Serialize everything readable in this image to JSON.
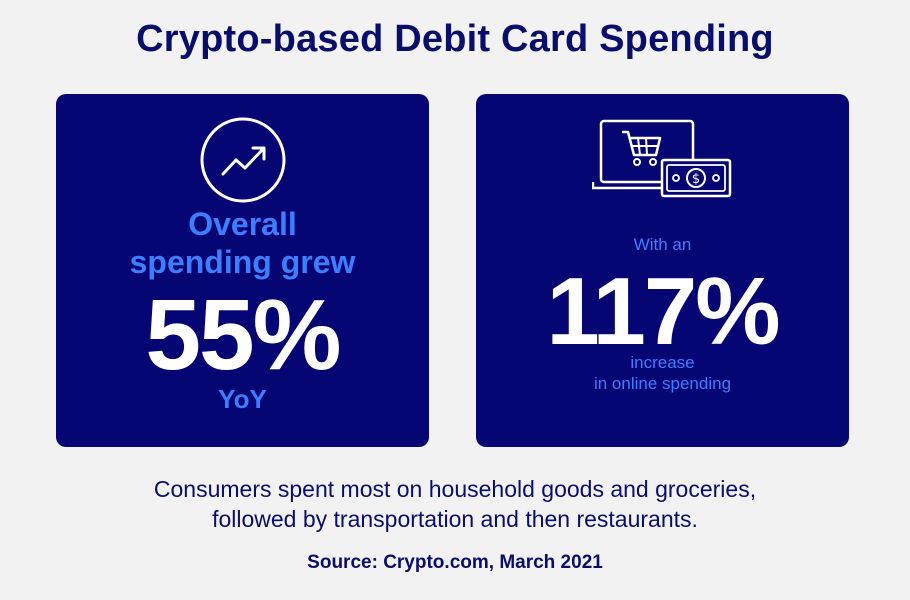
{
  "title": "Crypto-based Debit Card Spending",
  "left_card": {
    "icon": "trend-up-icon",
    "line1": "Overall",
    "line2": "spending grew",
    "stat": "55%",
    "suffix": "YoY"
  },
  "right_card": {
    "icon": "laptop-shopping-cart-cash-icon",
    "prefix": "With an",
    "stat": "117%",
    "suffix_line1": "increase",
    "suffix_line2": "in online spending"
  },
  "description": {
    "line1": "Consumers spent most on household goods and groceries,",
    "line2": "followed by transportation and then restaurants."
  },
  "source": "Source: Crypto.com, March 2021",
  "colors": {
    "navy_text": "#0a0e6b",
    "card_bg": "#050673",
    "accent_blue": "#3d7dff",
    "page_bg": "#f2f2f2"
  }
}
